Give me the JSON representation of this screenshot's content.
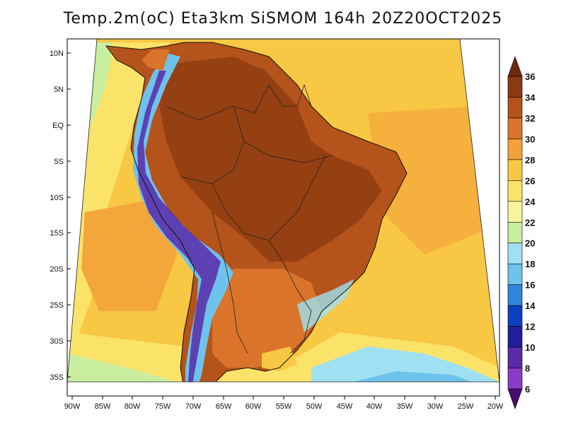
{
  "title": "Temp.2m(oC) Eta3km SiSMOM 164h 20Z20OCT2025",
  "lat_labels": [
    "10N",
    "5N",
    "EQ",
    "5S",
    "10S",
    "15S",
    "20S",
    "25S",
    "30S",
    "35S"
  ],
  "lon_labels": [
    "90W",
    "85W",
    "80W",
    "75W",
    "70W",
    "65W",
    "60W",
    "55W",
    "50W",
    "45W",
    "40W",
    "35W",
    "30W",
    "25W",
    "20W"
  ],
  "colorbar": {
    "labels": [
      "36",
      "34",
      "32",
      "30",
      "28",
      "26",
      "24",
      "22",
      "20",
      "18",
      "16",
      "14",
      "12",
      "10",
      "8",
      "6"
    ],
    "colors": [
      "#6b2a0e",
      "#8a3a12",
      "#b4531b",
      "#d9742a",
      "#f1a23a",
      "#f8c743",
      "#fbe36a",
      "#f9f59c",
      "#c9eea0",
      "#9fe1f2",
      "#6ec3ec",
      "#2f86dc",
      "#0d3fc2",
      "#1f1f9a",
      "#5a2aa8",
      "#8b3ac8",
      "#4a0b6e"
    ]
  },
  "colors": {
    "ocean_warm": "#f3a63a",
    "ocean_mid": "#f8c743",
    "ocean_pale": "#f9f59c",
    "land_hot": "#b4531b",
    "land_very_hot": "#8a3a12",
    "andes_cold": "#6ec3ec",
    "andes_coldest": "#5a2aa8",
    "south_cool": "#9fe1f2"
  }
}
